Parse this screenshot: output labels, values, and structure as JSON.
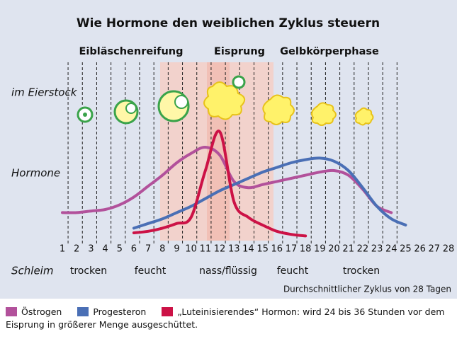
{
  "chart_data": {
    "type": "line",
    "title": "Wie Hormone den weiblichen Zyklus steuern",
    "phases": [
      "Eibläschenreifung",
      "Eisprung",
      "Gelbkörperphase"
    ],
    "row_labels": [
      "im Eierstock",
      "Hormone",
      "Schleim"
    ],
    "mucus": [
      "trocken",
      "feucht",
      "nass/flüssig",
      "feucht",
      "trocken"
    ],
    "note": "Durchschnittlicher Zyklus von 28 Tagen",
    "x": [
      1,
      2,
      3,
      4,
      5,
      6,
      7,
      8,
      9,
      10,
      11,
      12,
      13,
      14,
      15,
      16,
      17,
      18,
      19,
      20,
      21,
      22,
      23,
      24,
      25,
      26,
      27,
      28
    ],
    "xlim": [
      1,
      28
    ],
    "ylim": [
      0,
      100
    ],
    "series": [
      {
        "name": "Östrogen",
        "color": "#b2519b",
        "values": [
          18,
          18,
          19,
          20,
          23,
          28,
          35,
          42,
          50,
          56,
          60,
          55,
          38,
          34,
          36,
          38,
          40,
          42,
          44,
          45,
          42,
          33,
          22,
          18,
          null,
          null,
          null,
          null
        ]
      },
      {
        "name": "Progesteron",
        "color": "#4a6fb5",
        "values": [
          null,
          null,
          null,
          null,
          null,
          8,
          11,
          14,
          18,
          22,
          27,
          32,
          36,
          40,
          44,
          47,
          50,
          52,
          53,
          51,
          45,
          34,
          22,
          14,
          10,
          null,
          null,
          null
        ]
      },
      {
        "name": "„Luteinisierendes“ Hormon: wird 24 bis 36 Stunden vor dem Eisprung in größerer Menge ausgeschüttet.",
        "color": "#cc1246",
        "values": [
          null,
          null,
          null,
          null,
          null,
          5,
          6,
          8,
          11,
          15,
          45,
          70,
          25,
          15,
          10,
          6,
          4,
          3,
          null,
          null,
          null,
          null,
          null,
          null,
          null,
          null,
          null,
          null
        ]
      }
    ]
  }
}
